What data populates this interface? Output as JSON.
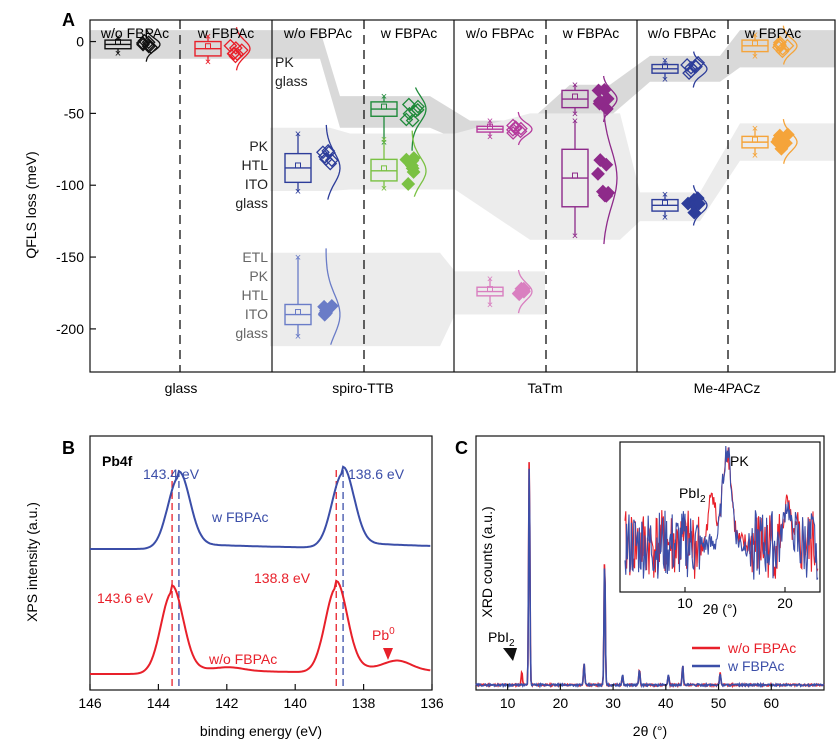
{
  "colors": {
    "black": "#111111",
    "red": "#e8202a",
    "blue": "#3b4ea8",
    "green": "#1f8a3a",
    "light_green": "#7ac143",
    "magenta": "#b63c9d",
    "dark_magenta": "#8e2a8a",
    "pink": "#d97fc0",
    "navy": "#2d3d9a",
    "orange": "#f5a43a",
    "band_dark": "#d9d9d9",
    "band_light": "#ececec"
  },
  "panelA": {
    "letter": "A",
    "ylabel": "QFLS loss (meV)",
    "yticks": [
      "0",
      "-50",
      "-100",
      "-150",
      "-200"
    ],
    "ylim": [
      -230,
      15
    ],
    "groups": [
      "glass",
      "spiro-TTB",
      "TaTm",
      "Me-4PACz"
    ],
    "column_headers": [
      "w/o FBPAc",
      "w FBPAc",
      "w/o FBPAc",
      "w FBPAc",
      "w/o FBPAc",
      "w FBPAc",
      "w/o FBPAc",
      "w FBPAc"
    ],
    "stack_label_top": [
      "PK",
      "glass"
    ],
    "stack_label_mid": [
      "PK",
      "HTL",
      "ITO",
      "glass"
    ],
    "stack_label_bot": [
      "ETL",
      "PK",
      "HTL",
      "ITO",
      "glass"
    ]
  },
  "panelB": {
    "letter": "B",
    "title": "Pb4f",
    "xlabel": "binding energy (eV)",
    "ylabel": "XPS intensity (a.u.)",
    "xticks": [
      "146",
      "144",
      "142",
      "140",
      "138",
      "136"
    ],
    "peak_labels_w": [
      "143.4 eV",
      "138.6 eV"
    ],
    "peak_labels_wo": [
      "143.6 eV",
      "138.8 eV"
    ],
    "curve_w_label": "w FBPAc",
    "curve_wo_label": "w/o FBPAc",
    "pb0_label": "Pb",
    "pb0_sup": "0"
  },
  "panelC": {
    "letter": "C",
    "xlabel": "2θ (°)",
    "ylabel": "XRD counts (a.u.)",
    "xticks": [
      "10",
      "20",
      "30",
      "40",
      "50",
      "60"
    ],
    "legend": [
      "w/o FBPAc",
      "w FBPAc"
    ],
    "pbi2_label": "PbI",
    "pbi2_sub": "2",
    "inset_pbi2_label": "PbI",
    "inset_pk_label": "PK",
    "inset_xticks": [
      "10",
      "20"
    ],
    "inset_xlabel": "2θ (°)"
  },
  "chart_data": [
    {
      "type": "box",
      "ylabel": "QFLS loss (meV)",
      "ylim": [
        -230,
        15
      ],
      "categories": [
        "glass",
        "spiro-TTB",
        "TaTm",
        "Me-4PACz"
      ],
      "series": [
        {
          "group": "glass",
          "condition": "w/o FBPAc",
          "stack": "PK/glass",
          "median": -2,
          "q1": -5,
          "q3": 1,
          "min": -8,
          "max": 3
        },
        {
          "group": "glass",
          "condition": "w FBPAc",
          "stack": "PK/glass",
          "median": -5,
          "q1": -10,
          "q3": 0,
          "min": -14,
          "max": 4
        },
        {
          "group": "spiro-TTB",
          "condition": "w/o FBPAc",
          "stack": "PK/HTL/ITO/glass",
          "median": -88,
          "q1": -98,
          "q3": -78,
          "min": -104,
          "max": -64
        },
        {
          "group": "spiro-TTB",
          "condition": "w/o FBPAc",
          "stack": "ETL/PK/HTL/ITO/glass",
          "median": -190,
          "q1": -197,
          "q3": -183,
          "min": -205,
          "max": -150
        },
        {
          "group": "spiro-TTB",
          "condition": "w FBPAc",
          "stack": "PK/HTL/ITO/glass",
          "median": -47,
          "q1": -52,
          "q3": -42,
          "min": -70,
          "max": -38
        },
        {
          "group": "spiro-TTB",
          "condition": "w FBPAc",
          "stack": "ETL/PK/HTL/ITO/glass",
          "median": -90,
          "q1": -97,
          "q3": -82,
          "min": -102,
          "max": -68
        },
        {
          "group": "TaTm",
          "condition": "w/o FBPAc",
          "stack": "PK/HTL/ITO/glass",
          "median": -61,
          "q1": -63,
          "q3": -59,
          "min": -66,
          "max": -55
        },
        {
          "group": "TaTm",
          "condition": "w/o FBPAc",
          "stack": "ETL/PK/HTL/ITO/glass",
          "median": -174,
          "q1": -177,
          "q3": -171,
          "min": -183,
          "max": -165
        },
        {
          "group": "TaTm",
          "condition": "w FBPAc",
          "stack": "PK/HTL/ITO/glass",
          "median": -40,
          "q1": -46,
          "q3": -34,
          "min": -50,
          "max": -30
        },
        {
          "group": "TaTm",
          "condition": "w FBPAc",
          "stack": "ETL/PK/HTL/ITO/glass",
          "median": -95,
          "q1": -115,
          "q3": -75,
          "min": -135,
          "max": -55
        },
        {
          "group": "Me-4PACz",
          "condition": "w/o FBPAc",
          "stack": "PK/HTL/ITO/glass",
          "median": -19,
          "q1": -22,
          "q3": -16,
          "min": -26,
          "max": -13
        },
        {
          "group": "Me-4PACz",
          "condition": "w/o FBPAc",
          "stack": "ETL/PK/HTL/ITO/glass",
          "median": -114,
          "q1": -118,
          "q3": -110,
          "min": -122,
          "max": -106
        },
        {
          "group": "Me-4PACz",
          "condition": "w FBPAc",
          "stack": "PK/HTL/ITO/glass",
          "median": -3,
          "q1": -7,
          "q3": 1,
          "min": -10,
          "max": 5
        },
        {
          "group": "Me-4PACz",
          "condition": "w FBPAc",
          "stack": "ETL/PK/HTL/ITO/glass",
          "median": -70,
          "q1": -74,
          "q3": -66,
          "min": -79,
          "max": -60
        }
      ]
    },
    {
      "type": "line",
      "title": "Pb4f",
      "xlabel": "binding energy (eV)",
      "ylabel": "XPS intensity (a.u.)",
      "xlim": [
        146,
        136
      ],
      "series": [
        {
          "name": "w FBPAc",
          "peaks_eV": [
            143.4,
            138.6
          ]
        },
        {
          "name": "w/o FBPAc",
          "peaks_eV": [
            143.6,
            138.8
          ]
        }
      ]
    },
    {
      "type": "line",
      "xlabel": "2θ (°)",
      "ylabel": "XRD counts (a.u.)",
      "xlim": [
        4,
        70
      ],
      "series": [
        {
          "name": "w/o FBPAc",
          "peaks_2theta": [
            12.7,
            14.1,
            24.5,
            28.4,
            31.8,
            35.0,
            40.5,
            43.2,
            50.3
          ]
        },
        {
          "name": "w FBPAc",
          "peaks_2theta": [
            14.1,
            24.5,
            28.4,
            31.8,
            35.0,
            40.5,
            43.2,
            50.3
          ]
        }
      ]
    }
  ]
}
